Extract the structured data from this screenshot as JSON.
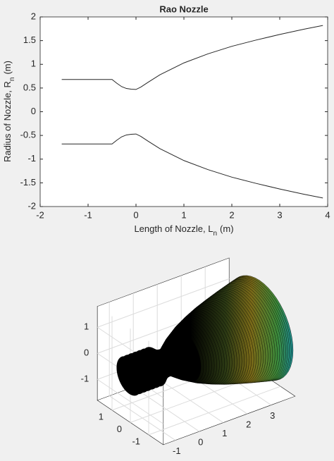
{
  "chart_data": [
    {
      "type": "line",
      "title": "Rao Nozzle",
      "xlabel": {
        "text": "Length of Nozzle, L",
        "subscript": "n",
        "unit": "(m)"
      },
      "ylabel": {
        "text": "Radius of Nozzle, R",
        "subscript": "n",
        "unit": "(m)"
      },
      "x": [
        -1.55,
        -0.5,
        -0.4,
        -0.3,
        -0.2,
        -0.1,
        0,
        0.1,
        0.25,
        0.5,
        1,
        1.5,
        2,
        2.5,
        3,
        3.5,
        3.9
      ],
      "series": [
        {
          "color": "#262626",
          "values": [
            0.68,
            0.68,
            0.6,
            0.53,
            0.49,
            0.475,
            0.47,
            0.52,
            0.62,
            0.78,
            1.03,
            1.22,
            1.38,
            1.51,
            1.63,
            1.74,
            1.82
          ]
        },
        {
          "color": "#262626",
          "values": [
            -0.68,
            -0.68,
            -0.6,
            -0.53,
            -0.49,
            -0.475,
            -0.47,
            -0.52,
            -0.62,
            -0.78,
            -1.03,
            -1.22,
            -1.38,
            -1.51,
            -1.63,
            -1.74,
            -1.82
          ]
        }
      ],
      "xlim": [
        -2,
        4
      ],
      "ylim": [
        -2,
        2
      ],
      "xticks": [
        -2,
        -1,
        0,
        1,
        2,
        3,
        4
      ],
      "yticks": [
        -2,
        -1.5,
        -1,
        -0.5,
        0,
        0.5,
        1,
        1.5,
        2
      ]
    },
    {
      "type": "surface3d",
      "xlim": [
        -1.5,
        4
      ],
      "ylim": [
        -1.8,
        1.8
      ],
      "zlim": [
        -1.8,
        1.8
      ],
      "xticks": [
        -1,
        0,
        1,
        2,
        3
      ],
      "yticks": [
        -1,
        0,
        1
      ],
      "zticks": [
        -1,
        0,
        1
      ]
    }
  ]
}
